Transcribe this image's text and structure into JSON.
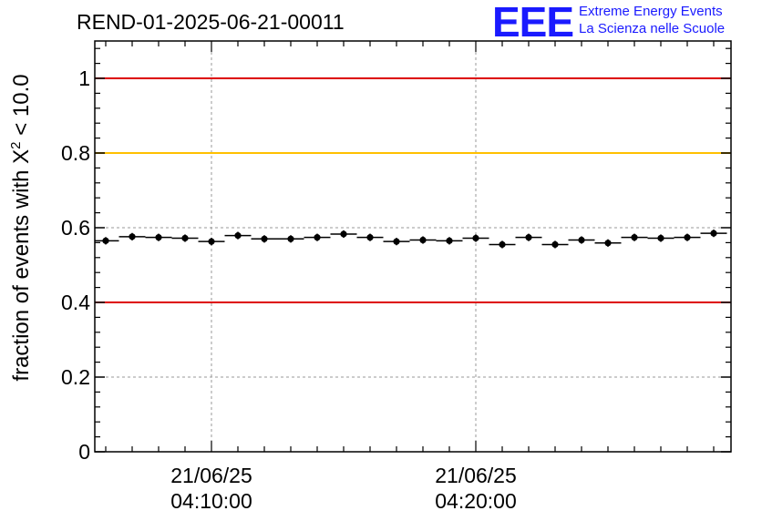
{
  "title": "REND-01-2025-06-21-00011",
  "logo": {
    "mark": "EEE",
    "line1": "Extreme Energy Events",
    "line2": "La Scienza nelle Scuole",
    "color": "#1a1aff"
  },
  "chart_data": {
    "type": "scatter",
    "title": "REND-01-2025-06-21-00011",
    "ylabel": "fraction of events with X² < 10.0",
    "ylabel_parts": {
      "prefix": "fraction of events with X",
      "sup": "2",
      "suffix": " < 10.0"
    },
    "ylim": [
      0,
      1.1
    ],
    "y_ticks": [
      "0",
      "0.2",
      "0.4",
      "0.6",
      "0.8",
      "1"
    ],
    "y_tick_values": [
      0,
      0.2,
      0.4,
      0.6,
      0.8,
      1.0
    ],
    "x_ticks": [
      {
        "date": "21/06/25",
        "time": "04:10:00",
        "minutes": 10
      },
      {
        "date": "21/06/25",
        "time": "04:20:00",
        "minutes": 20
      }
    ],
    "xlim_minutes": [
      6,
      29.6
    ],
    "grid": true,
    "reference_lines": [
      {
        "y": 1.0,
        "color": "#dd0000"
      },
      {
        "y": 0.8,
        "color": "#ffc000"
      },
      {
        "y": 0.4,
        "color": "#dd0000"
      }
    ],
    "series": [
      {
        "x_minutes": [
          6.0,
          7.0,
          8.0,
          9.0,
          10.0,
          11.0,
          12.0,
          13.0,
          14.0,
          15.0,
          16.0,
          17.0,
          18.0,
          19.0,
          20.0,
          21.0,
          22.0,
          23.0,
          24.0,
          25.0,
          26.0,
          27.0,
          28.0,
          29.0
        ],
        "x_halfwidth_minutes": 0.5,
        "y": [
          0.565,
          0.576,
          0.574,
          0.572,
          0.563,
          0.579,
          0.57,
          0.57,
          0.574,
          0.583,
          0.574,
          0.563,
          0.567,
          0.565,
          0.572,
          0.555,
          0.574,
          0.555,
          0.567,
          0.559,
          0.574,
          0.572,
          0.574,
          0.585
        ],
        "y_err": 0.01
      }
    ]
  }
}
